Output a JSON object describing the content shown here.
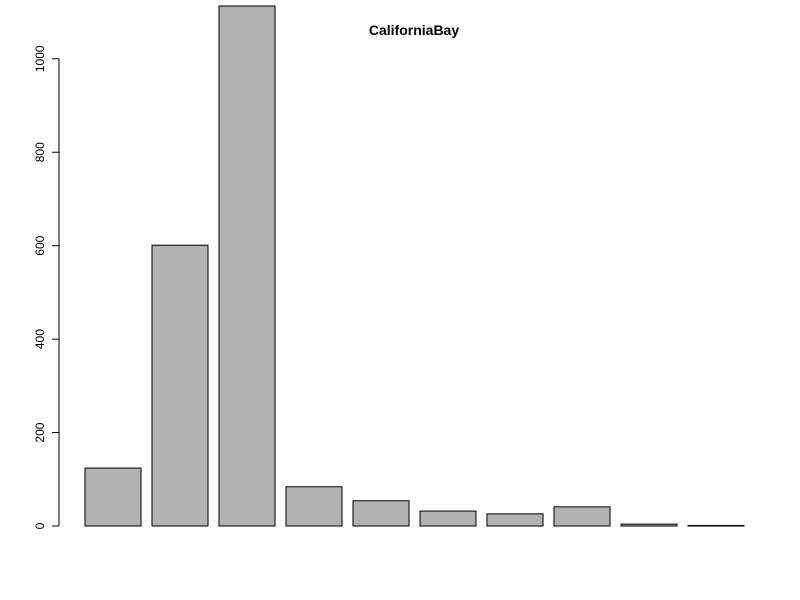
{
  "chart_data": {
    "type": "bar",
    "title": "CaliforniaBay",
    "categories": [
      null,
      null,
      null,
      null,
      null,
      null,
      null,
      null,
      null,
      null
    ],
    "values": [
      124,
      601,
      1113,
      84,
      54,
      32,
      26,
      41,
      4,
      1
    ],
    "color": "#b2b2b2",
    "ylim": [
      0,
      1113
    ],
    "yticks": [
      0,
      200,
      400,
      600,
      800,
      1000
    ],
    "grid": false
  }
}
